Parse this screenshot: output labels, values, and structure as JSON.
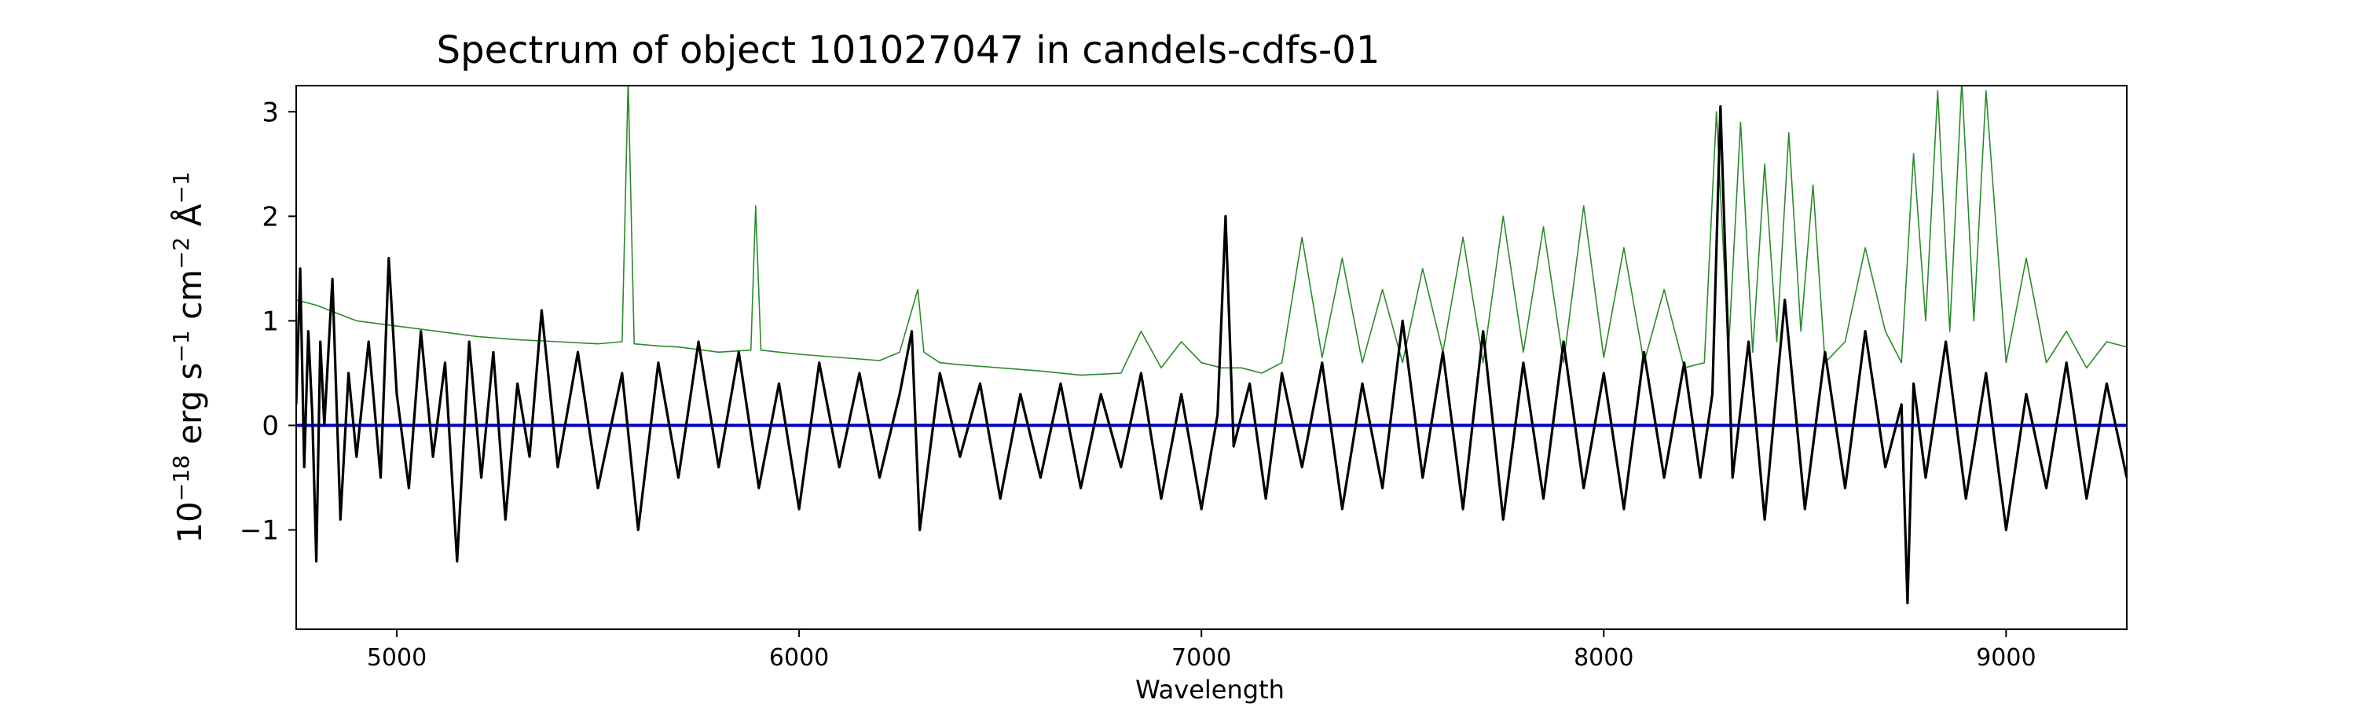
{
  "chart_data": {
    "type": "line",
    "title": "Spectrum of object 101027047 in candels-cdfs-01",
    "xlabel": "Wavelength",
    "ylabel": {
      "base": "10",
      "exp1": "−18",
      "unit1": " erg s",
      "exp2": "−1",
      "unit2": " cm",
      "exp3": "−2",
      "unit3": " Å",
      "exp4": "−1"
    },
    "xlim": [
      4750,
      9300
    ],
    "ylim": [
      -1.95,
      3.25
    ],
    "x_ticks": [
      5000,
      6000,
      7000,
      8000,
      9000
    ],
    "x_tick_labels": [
      "5000",
      "6000",
      "7000",
      "8000",
      "9000"
    ],
    "y_ticks": [
      -1,
      0,
      1,
      2,
      3
    ],
    "y_tick_labels": [
      "−1",
      "0",
      "1",
      "2",
      "3"
    ],
    "grid": false,
    "colors": {
      "flux": "#000000",
      "error": "#2a8a2a",
      "zero": "#0000cc"
    },
    "series": [
      {
        "role": "error",
        "x": [
          4750,
          4800,
          4900,
          5000,
          5100,
          5200,
          5300,
          5400,
          5500,
          5560,
          5575,
          5590,
          5650,
          5700,
          5800,
          5880,
          5892,
          5905,
          5950,
          6000,
          6100,
          6200,
          6250,
          6295,
          6310,
          6350,
          6400,
          6500,
          6600,
          6700,
          6800,
          6850,
          6900,
          6950,
          7000,
          7050,
          7100,
          7150,
          7200,
          7250,
          7300,
          7350,
          7400,
          7450,
          7500,
          7550,
          7600,
          7650,
          7700,
          7750,
          7800,
          7850,
          7900,
          7950,
          8000,
          8050,
          8100,
          8150,
          8200,
          8250,
          8280,
          8310,
          8340,
          8370,
          8400,
          8430,
          8460,
          8490,
          8520,
          8550,
          8600,
          8650,
          8700,
          8740,
          8770,
          8800,
          8830,
          8860,
          8890,
          8920,
          8950,
          9000,
          9050,
          9100,
          9150,
          9200,
          9250,
          9300
        ],
        "y": [
          1.2,
          1.15,
          1.0,
          0.95,
          0.9,
          0.85,
          0.82,
          0.8,
          0.78,
          0.8,
          3.3,
          0.78,
          0.76,
          0.75,
          0.7,
          0.72,
          2.1,
          0.72,
          0.7,
          0.68,
          0.65,
          0.62,
          0.7,
          1.3,
          0.7,
          0.6,
          0.58,
          0.55,
          0.52,
          0.48,
          0.5,
          0.9,
          0.55,
          0.8,
          0.6,
          0.55,
          0.55,
          0.5,
          0.6,
          1.8,
          0.65,
          1.6,
          0.6,
          1.3,
          0.6,
          1.5,
          0.7,
          1.8,
          0.6,
          2.0,
          0.7,
          1.9,
          0.6,
          2.1,
          0.65,
          1.7,
          0.6,
          1.3,
          0.55,
          0.6,
          3.0,
          0.7,
          2.9,
          0.7,
          2.5,
          0.8,
          2.8,
          0.9,
          2.3,
          0.6,
          0.8,
          1.7,
          0.9,
          0.6,
          2.6,
          1.0,
          3.2,
          0.9,
          3.3,
          1.0,
          3.2,
          0.6,
          1.6,
          0.6,
          0.9,
          0.55,
          0.8,
          0.75
        ]
      },
      {
        "role": "flux",
        "x": [
          4750,
          4760,
          4770,
          4780,
          4790,
          4800,
          4810,
          4820,
          4840,
          4860,
          4880,
          4900,
          4930,
          4960,
          4980,
          5000,
          5030,
          5060,
          5090,
          5120,
          5150,
          5180,
          5210,
          5240,
          5270,
          5300,
          5330,
          5360,
          5400,
          5450,
          5500,
          5560,
          5600,
          5650,
          5700,
          5750,
          5800,
          5850,
          5900,
          5950,
          6000,
          6050,
          6100,
          6150,
          6200,
          6250,
          6280,
          6300,
          6350,
          6400,
          6450,
          6500,
          6550,
          6600,
          6650,
          6700,
          6750,
          6800,
          6850,
          6900,
          6950,
          7000,
          7040,
          7060,
          7080,
          7120,
          7160,
          7200,
          7250,
          7300,
          7350,
          7400,
          7450,
          7500,
          7550,
          7600,
          7650,
          7700,
          7750,
          7800,
          7850,
          7900,
          7950,
          8000,
          8050,
          8100,
          8150,
          8200,
          8240,
          8270,
          8290,
          8320,
          8360,
          8400,
          8450,
          8500,
          8550,
          8600,
          8650,
          8700,
          8740,
          8755,
          8770,
          8800,
          8850,
          8900,
          8950,
          9000,
          9050,
          9100,
          9150,
          9200,
          9250,
          9300
        ],
        "y": [
          0.2,
          1.5,
          -0.4,
          0.9,
          0.1,
          -1.3,
          0.8,
          0.0,
          1.4,
          -0.9,
          0.5,
          -0.3,
          0.8,
          -0.5,
          1.6,
          0.3,
          -0.6,
          0.9,
          -0.3,
          0.6,
          -1.3,
          0.8,
          -0.5,
          0.7,
          -0.9,
          0.4,
          -0.3,
          1.1,
          -0.4,
          0.7,
          -0.6,
          0.5,
          -1.0,
          0.6,
          -0.5,
          0.8,
          -0.4,
          0.7,
          -0.6,
          0.4,
          -0.8,
          0.6,
          -0.4,
          0.5,
          -0.5,
          0.3,
          0.9,
          -1.0,
          0.5,
          -0.3,
          0.4,
          -0.7,
          0.3,
          -0.5,
          0.4,
          -0.6,
          0.3,
          -0.4,
          0.5,
          -0.7,
          0.3,
          -0.8,
          0.1,
          2.0,
          -0.2,
          0.4,
          -0.7,
          0.5,
          -0.4,
          0.6,
          -0.8,
          0.4,
          -0.6,
          1.0,
          -0.5,
          0.7,
          -0.8,
          0.9,
          -0.9,
          0.6,
          -0.7,
          0.8,
          -0.6,
          0.5,
          -0.8,
          0.7,
          -0.5,
          0.6,
          -0.5,
          0.3,
          3.05,
          -0.5,
          0.8,
          -0.9,
          1.2,
          -0.8,
          0.7,
          -0.6,
          0.9,
          -0.4,
          0.2,
          -1.7,
          0.4,
          -0.5,
          0.8,
          -0.7,
          0.5,
          -1.0,
          0.3,
          -0.6,
          0.6,
          -0.7,
          0.4,
          -0.5
        ]
      },
      {
        "role": "zero",
        "x": [
          4750,
          9300
        ],
        "y": [
          0,
          0
        ]
      }
    ]
  }
}
